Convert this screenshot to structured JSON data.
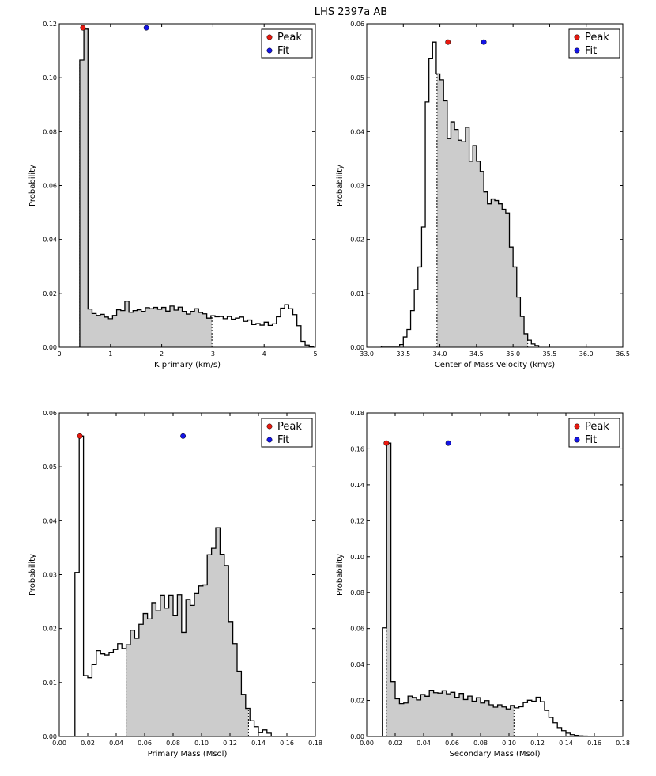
{
  "title": "LHS 2397a AB",
  "legend": {
    "peak_label": "Peak",
    "fit_label": "Fit",
    "peak_color": "#e8190f",
    "fit_color": "#1414e6"
  },
  "colors": {
    "fill": "#cccccc",
    "line": "#000000"
  },
  "chart_data": [
    {
      "type": "histogram",
      "xlabel": "K primary (km/s)",
      "ylabel": "Probability",
      "xlim": [
        0,
        5
      ],
      "ylim": [
        0,
        0.12
      ],
      "xticks": [
        "0",
        "1",
        "2",
        "3",
        "4",
        "5"
      ],
      "yticks": [
        "0.00",
        "0.02",
        "0.04",
        "0.06",
        "0.08",
        "0.10",
        "0.12"
      ],
      "bin_start": 0.4,
      "bin_width": 0.08,
      "values": [
        0.1065,
        0.118,
        0.0142,
        0.0125,
        0.0118,
        0.0122,
        0.0112,
        0.0106,
        0.0118,
        0.0139,
        0.0136,
        0.0171,
        0.013,
        0.0136,
        0.0139,
        0.0133,
        0.0147,
        0.0143,
        0.0148,
        0.0141,
        0.0148,
        0.0134,
        0.0153,
        0.0138,
        0.0149,
        0.0133,
        0.0123,
        0.0133,
        0.0143,
        0.0129,
        0.0124,
        0.0108,
        0.0117,
        0.0113,
        0.0114,
        0.0106,
        0.0114,
        0.0104,
        0.0108,
        0.0112,
        0.0096,
        0.0101,
        0.0084,
        0.0088,
        0.0082,
        0.0093,
        0.0081,
        0.0087,
        0.0113,
        0.0145,
        0.0158,
        0.0143,
        0.0121,
        0.008,
        0.0022,
        0.0008,
        0.0002
      ],
      "shade_range": [
        0.4,
        2.98
      ],
      "peak": {
        "x": 0.46,
        "y": 0.1185
      },
      "fit": {
        "x": 1.7,
        "y": 0.1185
      }
    },
    {
      "type": "histogram",
      "xlabel": "Center of Mass Velocity (km/s)",
      "ylabel": "Probability",
      "xlim": [
        33.0,
        36.5
      ],
      "ylim": [
        0,
        0.06
      ],
      "xticks": [
        "33.0",
        "33.5",
        "34.0",
        "34.5",
        "35.0",
        "35.5",
        "36.0",
        "36.5"
      ],
      "yticks": [
        "0.00",
        "0.01",
        "0.02",
        "0.03",
        "0.04",
        "0.05",
        "0.06"
      ],
      "bin_start": 33.2,
      "bin_width": 0.05,
      "values": [
        0.0002,
        0.0002,
        0.0002,
        0.0002,
        0.0002,
        0.0005,
        0.0019,
        0.0033,
        0.0068,
        0.0107,
        0.0149,
        0.0223,
        0.0455,
        0.0536,
        0.0566,
        0.0507,
        0.0496,
        0.0457,
        0.0387,
        0.0418,
        0.0404,
        0.0384,
        0.0381,
        0.0408,
        0.0345,
        0.0374,
        0.0345,
        0.0326,
        0.0288,
        0.0266,
        0.0275,
        0.0272,
        0.0266,
        0.0256,
        0.0249,
        0.0186,
        0.0149,
        0.0093,
        0.0057,
        0.0025,
        0.0013,
        0.0006,
        0.0003
      ],
      "shade_range": [
        33.96,
        35.2
      ],
      "peak": {
        "x": 34.11,
        "y": 0.0566
      },
      "fit": {
        "x": 34.6,
        "y": 0.0566
      }
    },
    {
      "type": "histogram",
      "xlabel": "Primary Mass (Msol)",
      "ylabel": "Probability",
      "xlim": [
        0,
        0.18
      ],
      "ylim": [
        0,
        0.06
      ],
      "xticks": [
        "0.00",
        "0.02",
        "0.04",
        "0.06",
        "0.08",
        "0.10",
        "0.12",
        "0.14",
        "0.16",
        "0.18"
      ],
      "yticks": [
        "0.00",
        "0.01",
        "0.02",
        "0.03",
        "0.04",
        "0.05",
        "0.06"
      ],
      "bin_start": 0.011,
      "bin_width": 0.003,
      "values": [
        0.0304,
        0.0557,
        0.0113,
        0.0109,
        0.0133,
        0.0159,
        0.0153,
        0.0151,
        0.0156,
        0.0161,
        0.0172,
        0.0163,
        0.017,
        0.0197,
        0.0182,
        0.0208,
        0.0228,
        0.0218,
        0.0248,
        0.0233,
        0.0262,
        0.0238,
        0.0262,
        0.0224,
        0.0263,
        0.0193,
        0.0254,
        0.0243,
        0.0265,
        0.0279,
        0.0281,
        0.0337,
        0.0349,
        0.0387,
        0.0338,
        0.0317,
        0.0213,
        0.0172,
        0.0121,
        0.0078,
        0.0052,
        0.0029,
        0.0018,
        0.0007,
        0.0012,
        0.0006
      ],
      "shade_range": [
        0.047,
        0.133
      ],
      "peak": {
        "x": 0.0145,
        "y": 0.0557
      },
      "fit": {
        "x": 0.087,
        "y": 0.0557
      }
    },
    {
      "type": "histogram",
      "xlabel": "Secondary Mass (Msol)",
      "ylabel": "Probability",
      "xlim": [
        0,
        0.18
      ],
      "ylim": [
        0,
        0.18
      ],
      "xticks": [
        "0.00",
        "0.02",
        "0.04",
        "0.06",
        "0.08",
        "0.10",
        "0.12",
        "0.14",
        "0.16",
        "0.18"
      ],
      "yticks": [
        "0.00",
        "0.02",
        "0.04",
        "0.06",
        "0.08",
        "0.10",
        "0.12",
        "0.14",
        "0.16",
        "0.18"
      ],
      "bin_start": 0.011,
      "bin_width": 0.003,
      "values": [
        0.0604,
        0.1632,
        0.0305,
        0.0209,
        0.0182,
        0.0186,
        0.0224,
        0.0216,
        0.0203,
        0.0233,
        0.0223,
        0.0257,
        0.0243,
        0.0241,
        0.0254,
        0.0237,
        0.0245,
        0.0217,
        0.0239,
        0.0205,
        0.0224,
        0.0196,
        0.0215,
        0.0186,
        0.0199,
        0.0176,
        0.0163,
        0.0176,
        0.0164,
        0.0153,
        0.0172,
        0.0159,
        0.0165,
        0.0188,
        0.0201,
        0.0196,
        0.0218,
        0.0193,
        0.0145,
        0.0106,
        0.0076,
        0.0049,
        0.0032,
        0.0018,
        0.001,
        0.0006,
        0.0003,
        0.0002
      ],
      "shade_range": [
        0.0138,
        0.1035
      ],
      "peak": {
        "x": 0.0138,
        "y": 0.1632
      },
      "fit": {
        "x": 0.0573,
        "y": 0.1632
      }
    }
  ]
}
